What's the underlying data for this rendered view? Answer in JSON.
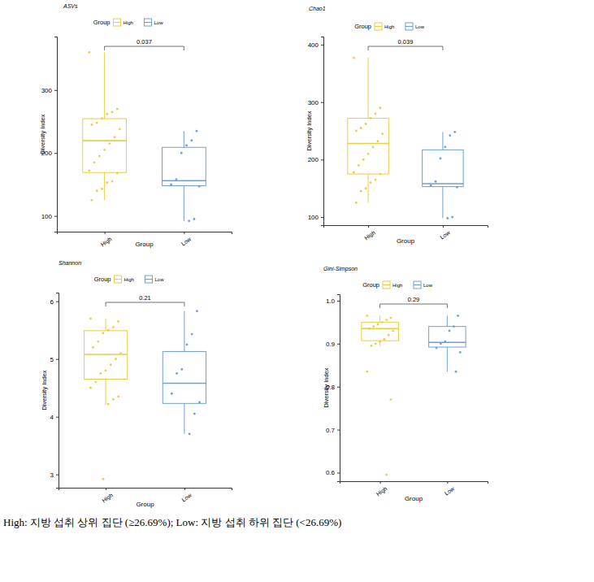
{
  "chart_data": [
    {
      "type": "box",
      "title": "ASVs",
      "x_label": "Group",
      "y_label": "Diversity Index",
      "legend_title": "Group",
      "legend": "top",
      "annotation": "0.037",
      "categories": [
        "High",
        "Low"
      ],
      "ylim": [
        75,
        385
      ],
      "yticks": [
        100,
        200,
        300
      ],
      "series": [
        {
          "name": "High",
          "color": "#EDCB45",
          "whisker_low": 125,
          "q1": 169,
          "median": 219.5,
          "q3": 254.5,
          "whisker_high": 360,
          "points": [
            360,
            270,
            265,
            262,
            255,
            248,
            245,
            238,
            225,
            215,
            205,
            195,
            185,
            172,
            168,
            155,
            153,
            143,
            140,
            125
          ]
        },
        {
          "name": "Low",
          "color": "#6E9FD8",
          "whisker_low": 92,
          "q1": 148,
          "median": 156,
          "q3": 209,
          "whisker_high": 235,
          "points": [
            235,
            220,
            212,
            200,
            158,
            150,
            147,
            95,
            92
          ]
        }
      ]
    },
    {
      "type": "box",
      "title": "Chao1",
      "x_label": "Group",
      "y_label": "Diversity Index",
      "legend_title": "Group",
      "legend": "top",
      "annotation": "0.039",
      "categories": [
        "High",
        "Low"
      ],
      "ylim": [
        86,
        414
      ],
      "yticks": [
        100,
        200,
        300,
        400
      ],
      "series": [
        {
          "name": "High",
          "color": "#EDCB45",
          "whisker_low": 125,
          "q1": 175,
          "median": 228,
          "q3": 272,
          "whisker_high": 377,
          "points": [
            377,
            290,
            280,
            272,
            262,
            255,
            250,
            245,
            232,
            222,
            210,
            200,
            190,
            178,
            175,
            165,
            160,
            150,
            145,
            125
          ]
        },
        {
          "name": "Low",
          "color": "#6E9FD8",
          "whisker_low": 98,
          "q1": 153,
          "median": 158,
          "q3": 217,
          "whisker_high": 248,
          "points": [
            248,
            242,
            222,
            202,
            162,
            155,
            152,
            100,
            98
          ]
        }
      ]
    },
    {
      "type": "box",
      "title": "Shannon",
      "x_label": "Group",
      "y_label": "Diversity Index",
      "legend_title": "Group",
      "legend": "top",
      "annotation": "0.21",
      "categories": [
        "High",
        "Low"
      ],
      "ylim": [
        2.77,
        6.15
      ],
      "yticks": [
        3,
        4,
        5,
        6
      ],
      "series": [
        {
          "name": "High",
          "color": "#EDCB45",
          "whisker_low": 4.2,
          "q1": 4.65,
          "median": 5.08,
          "q3": 5.49,
          "whisker_high": 5.7,
          "points": [
            5.7,
            5.65,
            5.55,
            5.5,
            5.45,
            5.3,
            5.2,
            5.1,
            5.0,
            4.9,
            4.8,
            4.75,
            4.6,
            4.5,
            4.35,
            4.3,
            4.22,
            2.92
          ]
        },
        {
          "name": "Low",
          "color": "#6E9FD8",
          "whisker_low": 3.7,
          "q1": 4.23,
          "median": 4.58,
          "q3": 5.13,
          "whisker_high": 5.83,
          "points": [
            5.83,
            5.43,
            5.25,
            4.82,
            4.75,
            4.4,
            4.25,
            4.05,
            3.7
          ]
        }
      ]
    },
    {
      "type": "box",
      "title": "Gini-Simpson",
      "x_label": "Group",
      "y_label": "Diversity Index",
      "legend_title": "Group",
      "legend": "top",
      "annotation": "0.29",
      "categories": [
        "High",
        "Low"
      ],
      "ylim": [
        0.58,
        1.015
      ],
      "yticks": [
        0.6,
        0.7,
        0.8,
        0.9,
        {
          "value": 1.0,
          "label": "1.0"
        }
      ],
      "series": [
        {
          "name": "High",
          "color": "#EDCB45",
          "whisker_low": 0.895,
          "q1": 0.907,
          "median": 0.935,
          "q3": 0.95,
          "whisker_high": 0.965,
          "points": [
            0.965,
            0.96,
            0.955,
            0.95,
            0.945,
            0.94,
            0.935,
            0.93,
            0.92,
            0.91,
            0.905,
            0.9,
            0.895,
            0.835,
            0.77,
            0.595
          ]
        },
        {
          "name": "Low",
          "color": "#6E9FD8",
          "whisker_low": 0.835,
          "q1": 0.892,
          "median": 0.903,
          "q3": 0.94,
          "whisker_high": 0.965,
          "points": [
            0.965,
            0.94,
            0.93,
            0.905,
            0.9,
            0.89,
            0.88,
            0.835
          ]
        }
      ]
    }
  ],
  "caption": "High: 지방 섭취 상위 집단 (≥26.69%); Low: 지방 섭취 하위 집단 (<26.69%)"
}
